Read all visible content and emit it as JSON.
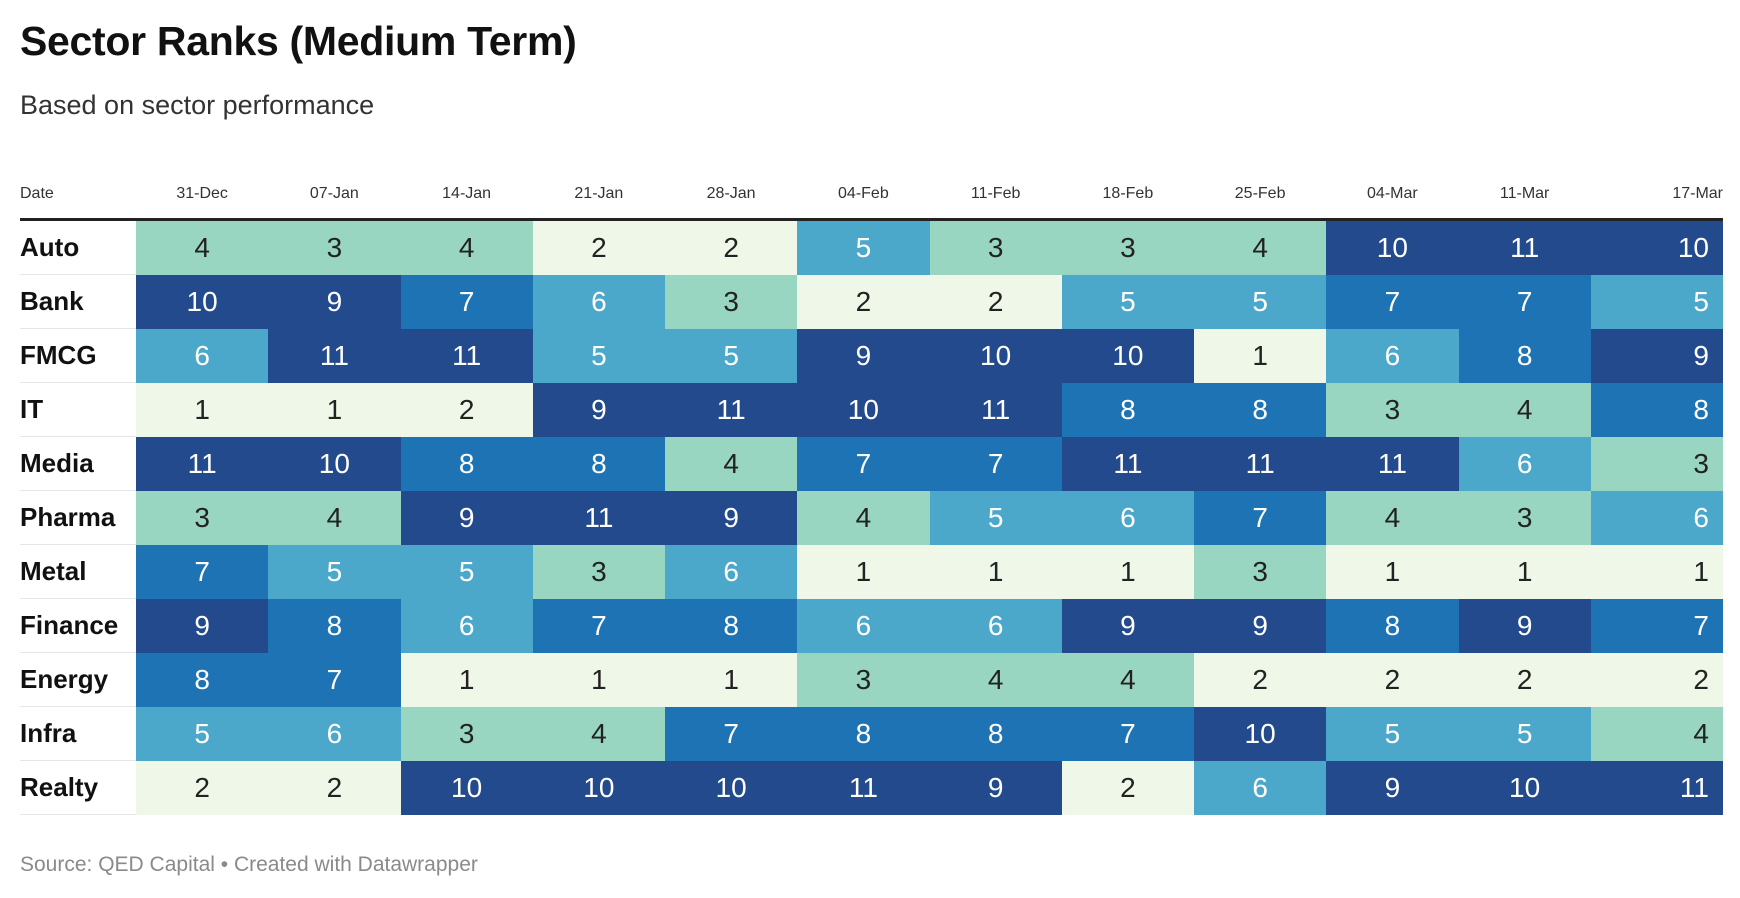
{
  "header": {
    "title": "Sector Ranks (Medium Term)",
    "subtitle": "Based on sector performance"
  },
  "footer": {
    "source": "Source: QED Capital • Created with Datawrapper"
  },
  "colors": {
    "rank_1_2": "#eef7e8",
    "rank_3_4": "#98d6c2",
    "rank_5_6": "#4ba8cb",
    "rank_7_8": "#1d73b3",
    "rank_9_11": "#234a8c",
    "dark_text": "#222222",
    "light_text": "#ffffff"
  },
  "chart_data": {
    "type": "heatmap",
    "title": "Sector Ranks (Medium Term)",
    "subtitle": "Based on sector performance",
    "row_header": "Date",
    "columns": [
      "31-Dec",
      "07-Jan",
      "14-Jan",
      "21-Jan",
      "28-Jan",
      "04-Feb",
      "11-Feb",
      "18-Feb",
      "25-Feb",
      "04-Mar",
      "11-Mar",
      "17-Mar"
    ],
    "rows": [
      {
        "name": "Auto",
        "values": [
          4,
          3,
          4,
          2,
          2,
          5,
          3,
          3,
          4,
          10,
          11,
          10
        ]
      },
      {
        "name": "Bank",
        "values": [
          10,
          9,
          7,
          6,
          3,
          2,
          2,
          5,
          5,
          7,
          7,
          5
        ]
      },
      {
        "name": "FMCG",
        "values": [
          6,
          11,
          11,
          5,
          5,
          9,
          10,
          10,
          1,
          6,
          8,
          9
        ]
      },
      {
        "name": "IT",
        "values": [
          1,
          1,
          2,
          9,
          11,
          10,
          11,
          8,
          8,
          3,
          4,
          8
        ]
      },
      {
        "name": "Media",
        "values": [
          11,
          10,
          8,
          8,
          4,
          7,
          7,
          11,
          11,
          11,
          6,
          3
        ]
      },
      {
        "name": "Pharma",
        "values": [
          3,
          4,
          9,
          11,
          9,
          4,
          5,
          6,
          7,
          4,
          3,
          6
        ]
      },
      {
        "name": "Metal",
        "values": [
          7,
          5,
          5,
          3,
          6,
          1,
          1,
          1,
          3,
          1,
          1,
          1
        ]
      },
      {
        "name": "Finance",
        "values": [
          9,
          8,
          6,
          7,
          8,
          6,
          6,
          9,
          9,
          8,
          9,
          7
        ]
      },
      {
        "name": "Energy",
        "values": [
          8,
          7,
          1,
          1,
          1,
          3,
          4,
          4,
          2,
          2,
          2,
          2
        ]
      },
      {
        "name": "Infra",
        "values": [
          5,
          6,
          3,
          4,
          7,
          8,
          8,
          7,
          10,
          5,
          5,
          4
        ]
      },
      {
        "name": "Realty",
        "values": [
          2,
          2,
          10,
          10,
          10,
          11,
          9,
          2,
          6,
          9,
          10,
          11
        ]
      }
    ],
    "value_range": [
      1,
      11
    ],
    "source": "Source: QED Capital • Created with Datawrapper"
  }
}
